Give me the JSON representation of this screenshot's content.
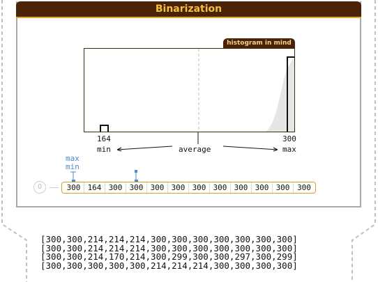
{
  "panel": {
    "title": "Binarization",
    "histogram_tag": "histogram in mind"
  },
  "histogram": {
    "min_value": "164",
    "max_value": "300",
    "min_label": "min",
    "average_label": "average",
    "max_label": "max"
  },
  "cursor": {
    "max_label": "max",
    "min_label": "min"
  },
  "strip": {
    "index_label": "0",
    "values": [
      "300",
      "164",
      "300",
      "300",
      "300",
      "300",
      "300",
      "300",
      "300",
      "300",
      "300",
      "300"
    ]
  },
  "matrix": [
    "[300,300,214,214,214,300,300,300,300,300,300,300]",
    "[300,300,214,214,214,300,300,300,300,300,300,300]",
    "[300,300,214,170,214,300,299,300,300,297,300,299]",
    "[300,300,300,300,300,214,214,214,300,300,300,300]"
  ],
  "colors": {
    "header_bg": "#4a2208",
    "header_text": "#f4bf3c",
    "accent_gold": "#d4a032",
    "cursor_blue": "#4a8ad6"
  }
}
